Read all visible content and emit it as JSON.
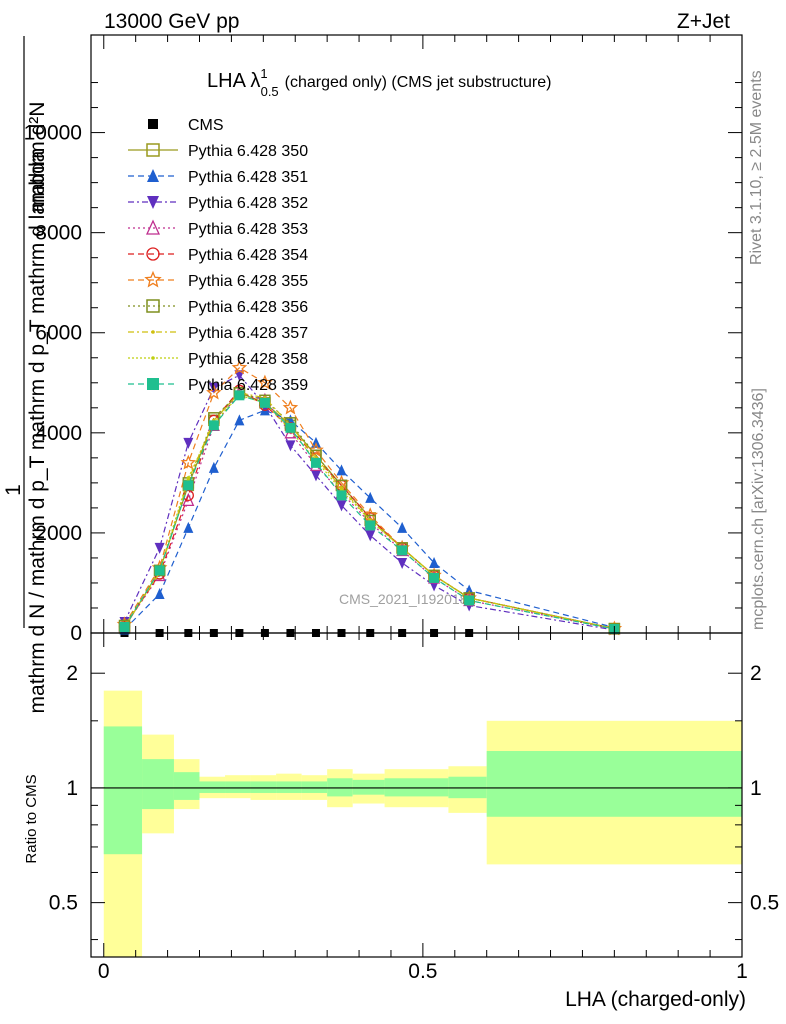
{
  "header": {
    "left": "13000 GeV pp",
    "right": "Z+Jet",
    "title_main": "LHA λ",
    "title_sup": "1",
    "title_sub": "0.5",
    "title_rest": "(charged only) (CMS jet substructure)"
  },
  "side": {
    "rivet": "Rivet 3.1.10, ≥ 2.5M events",
    "mcplots": "mcplots.cern.ch [arXiv:1306.3436]"
  },
  "watermark": "CMS_2021_I1920187",
  "colors": {
    "ref": "#000000",
    "band_inner": "#99ff99",
    "band_outer": "#ffff99"
  },
  "chart_data": [
    {
      "type": "line",
      "panel": "main",
      "ylabel_top": "1",
      "ylabel_num": "mathrm d²N",
      "ylabel_den": "mathrm d N / mathrm d p_T mathrm d p_T mathrm d lambda",
      "ytick_labels": [
        "0",
        "2000",
        "4000",
        "6000",
        "8000",
        "10000"
      ],
      "xlim": [
        -0.02,
        1.0
      ],
      "ylim": [
        0,
        11950
      ],
      "x": [
        0.0325,
        0.0875,
        0.1325,
        0.1725,
        0.2125,
        0.2525,
        0.2925,
        0.3325,
        0.3725,
        0.4175,
        0.4675,
        0.5175,
        0.5725,
        0.8
      ],
      "series": [
        {
          "name": "CMS",
          "color": "#000000",
          "marker": "square-filled",
          "dash": "none",
          "values": [
            0,
            0,
            0,
            0,
            0,
            0,
            0,
            0,
            0,
            0,
            0,
            0,
            0,
            0
          ]
        },
        {
          "name": "Pythia 6.428 350",
          "color": "#9a9a1f",
          "marker": "square-open",
          "dash": "none",
          "values": [
            100,
            1250,
            2950,
            4250,
            4800,
            4600,
            4150,
            3550,
            2950,
            2300,
            1700,
            1150,
            700,
            90
          ]
        },
        {
          "name": "Pythia 6.428 351",
          "color": "#1f5fcf",
          "marker": "triangle-up",
          "dash": "6,4",
          "values": [
            70,
            780,
            2100,
            3300,
            4250,
            4450,
            4250,
            3800,
            3250,
            2700,
            2100,
            1400,
            850,
            110
          ]
        },
        {
          "name": "Pythia 6.428 352",
          "color": "#5f2fbf",
          "marker": "triangle-down",
          "dash": "6,3,2,3",
          "values": [
            220,
            1700,
            3800,
            4900,
            5150,
            4550,
            3750,
            3150,
            2550,
            1950,
            1400,
            950,
            550,
            60
          ]
        },
        {
          "name": "Pythia 6.428 353",
          "color": "#bf2f8f",
          "marker": "triangle-open",
          "dash": "2,3",
          "values": [
            140,
            1150,
            2650,
            4150,
            4800,
            4650,
            4000,
            3350,
            2800,
            2200,
            1650,
            1100,
            650,
            80
          ]
        },
        {
          "name": "Pythia 6.428 354",
          "color": "#dd1f1f",
          "marker": "circle-open",
          "dash": "6,4",
          "values": [
            130,
            1180,
            2750,
            4250,
            4850,
            4550,
            4100,
            3500,
            2950,
            2300,
            1700,
            1150,
            700,
            85
          ]
        },
        {
          "name": "Pythia 6.428 355",
          "color": "#ef7f1f",
          "marker": "star-open",
          "dash": "6,4",
          "values": [
            170,
            1300,
            3400,
            4800,
            5300,
            5000,
            4500,
            3650,
            3000,
            2350,
            1700,
            1150,
            700,
            85
          ]
        },
        {
          "name": "Pythia 6.428 356",
          "color": "#7f8f1f",
          "marker": "square-open",
          "dash": "2,3",
          "values": [
            150,
            1250,
            3000,
            4300,
            4800,
            4650,
            4200,
            3550,
            2950,
            2250,
            1700,
            1150,
            700,
            85
          ]
        },
        {
          "name": "Pythia 6.428 357",
          "color": "#cfbf0f",
          "marker": "small-dot",
          "dash": "6,3,2,3",
          "values": [
            130,
            1200,
            3050,
            4250,
            4800,
            4700,
            4150,
            3500,
            2900,
            2250,
            1700,
            1150,
            700,
            85
          ]
        },
        {
          "name": "Pythia 6.428 358",
          "color": "#bfcf0f",
          "marker": "small-dot",
          "dash": "2,2",
          "values": [
            120,
            1250,
            3100,
            4200,
            4750,
            4600,
            4050,
            3450,
            2850,
            2250,
            1700,
            1150,
            700,
            85
          ]
        },
        {
          "name": "Pythia 6.428 359",
          "color": "#1fbf8f",
          "marker": "square-filled",
          "dash": "6,4",
          "values": [
            120,
            1250,
            2950,
            4150,
            4750,
            4600,
            4100,
            3400,
            2750,
            2150,
            1650,
            1100,
            650,
            80
          ]
        }
      ]
    },
    {
      "type": "area",
      "panel": "ratio",
      "ylabel": "Ratio to CMS",
      "xlabel": "LHA (charged-only)",
      "xtick_labels": [
        "0",
        "0.5",
        "1"
      ],
      "ytick_labels": [
        "0.5",
        "1",
        "2"
      ],
      "xlim": [
        -0.02,
        1.0
      ],
      "ylim_log": [
        0.36,
        2.55
      ],
      "reference_line": 1,
      "bins": [
        {
          "lo": 0.0,
          "hi": 0.06,
          "inner": [
            0.67,
            1.45
          ],
          "outer": [
            0.36,
            1.8
          ]
        },
        {
          "lo": 0.06,
          "hi": 0.11,
          "inner": [
            0.88,
            1.19
          ],
          "outer": [
            0.76,
            1.38
          ]
        },
        {
          "lo": 0.11,
          "hi": 0.15,
          "inner": [
            0.93,
            1.1
          ],
          "outer": [
            0.88,
            1.19
          ]
        },
        {
          "lo": 0.15,
          "hi": 0.19,
          "inner": [
            0.97,
            1.04
          ],
          "outer": [
            0.94,
            1.07
          ]
        },
        {
          "lo": 0.19,
          "hi": 0.23,
          "inner": [
            0.97,
            1.04
          ],
          "outer": [
            0.94,
            1.08
          ]
        },
        {
          "lo": 0.23,
          "hi": 0.27,
          "inner": [
            0.97,
            1.04
          ],
          "outer": [
            0.93,
            1.08
          ]
        },
        {
          "lo": 0.27,
          "hi": 0.31,
          "inner": [
            0.97,
            1.04
          ],
          "outer": [
            0.93,
            1.09
          ]
        },
        {
          "lo": 0.31,
          "hi": 0.35,
          "inner": [
            0.97,
            1.04
          ],
          "outer": [
            0.93,
            1.08
          ]
        },
        {
          "lo": 0.35,
          "hi": 0.39,
          "inner": [
            0.95,
            1.06
          ],
          "outer": [
            0.89,
            1.12
          ]
        },
        {
          "lo": 0.39,
          "hi": 0.44,
          "inner": [
            0.96,
            1.05
          ],
          "outer": [
            0.91,
            1.09
          ]
        },
        {
          "lo": 0.44,
          "hi": 0.49,
          "inner": [
            0.95,
            1.06
          ],
          "outer": [
            0.89,
            1.12
          ]
        },
        {
          "lo": 0.49,
          "hi": 0.54,
          "inner": [
            0.95,
            1.06
          ],
          "outer": [
            0.89,
            1.12
          ]
        },
        {
          "lo": 0.54,
          "hi": 0.6,
          "inner": [
            0.94,
            1.07
          ],
          "outer": [
            0.86,
            1.14
          ]
        },
        {
          "lo": 0.6,
          "hi": 1.0,
          "inner": [
            0.84,
            1.25
          ],
          "outer": [
            0.63,
            1.5
          ]
        }
      ]
    }
  ]
}
